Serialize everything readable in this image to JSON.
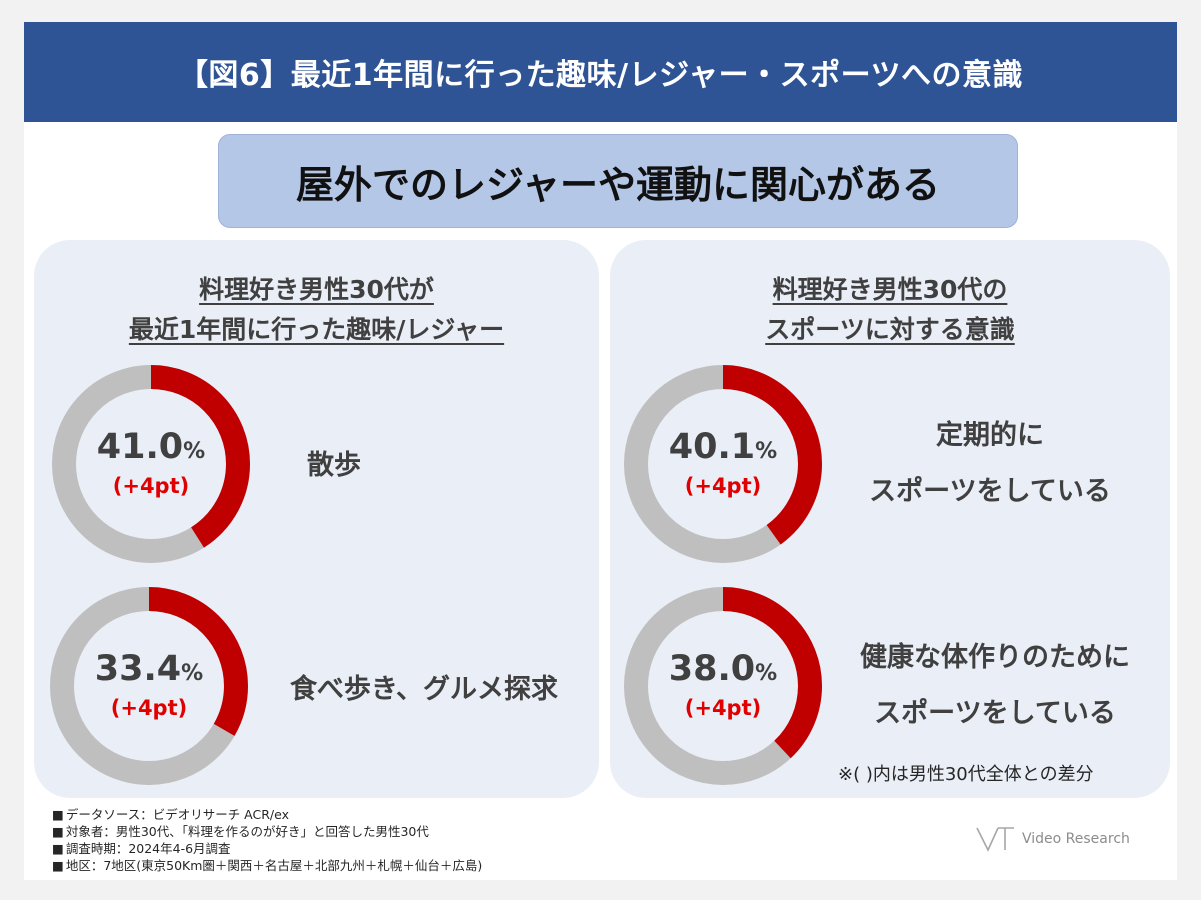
{
  "header": {
    "title": "【図6】最近1年間に行った趣味/レジャー・スポーツへの意識"
  },
  "subtitle": "屋外でのレジャーや運動に関心がある",
  "colors": {
    "highlight": "#c00000",
    "remainder": "#bfbfbf",
    "header_bg": "#2f5496",
    "diff_text": "#e00000"
  },
  "chart_data": [
    {
      "type": "pie",
      "title": "料理好き男性30代が最近1年間に行った趣味/レジャー",
      "title_lines": [
        "料理好き男性30代が",
        "最近1年間に行った趣味/レジャー"
      ],
      "items": [
        {
          "label": "散歩",
          "label_lines": [
            "散歩"
          ],
          "value": 41.0,
          "value_text": "41.0",
          "unit": "%",
          "diff": "(+4pt)"
        },
        {
          "label": "食べ歩き、グルメ探求",
          "label_lines": [
            "食べ歩き、グルメ探求"
          ],
          "value": 33.4,
          "value_text": "33.4",
          "unit": "%",
          "diff": "(+4pt)"
        }
      ]
    },
    {
      "type": "pie",
      "title": "料理好き男性30代のスポーツに対する意識",
      "title_lines": [
        "料理好き男性30代の",
        "スポーツに対する意識"
      ],
      "items": [
        {
          "label": "定期的にスポーツをしている",
          "label_lines": [
            "定期的に",
            "スポーツをしている"
          ],
          "value": 40.1,
          "value_text": "40.1",
          "unit": "%",
          "diff": "(+4pt)"
        },
        {
          "label": "健康な体作りのためにスポーツをしている",
          "label_lines": [
            "健康な体作りのために",
            "スポーツをしている"
          ],
          "value": 38.0,
          "value_text": "38.0",
          "unit": "%",
          "diff": "(+4pt)"
        }
      ]
    }
  ],
  "note": "※( )内は男性30代全体との差分",
  "footer": {
    "lines": [
      "データソース：ビデオリサーチ ACR/ex",
      "対象者：男性30代、「料理を作るのが好き」と回答した男性30代",
      "調査時期：2024年4-6月調査",
      "地区：7地区(東京50Km圏＋関西＋名古屋＋北部九州＋札幌＋仙台＋広島)"
    ]
  },
  "logo": {
    "text": "Video Research"
  }
}
